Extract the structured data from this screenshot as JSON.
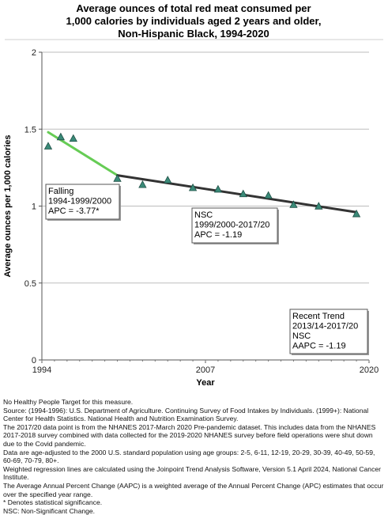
{
  "chart_data": {
    "type": "line",
    "title_lines": [
      "Average ounces of total red meat consumed per",
      "1,000 calories by individuals aged 2 years and older,",
      "Non-Hispanic Black,  1994-2020"
    ],
    "xlabel": "Year",
    "ylabel": "Average ounces per 1,000 calories",
    "xlim": [
      1994,
      2020
    ],
    "ylim": [
      0,
      2
    ],
    "x_ticks": [
      "1994",
      "2007",
      "2020"
    ],
    "x_tick_values": [
      1994,
      2007,
      2020
    ],
    "y_ticks": [
      "0",
      "0.5",
      "1",
      "1.5",
      "2"
    ],
    "y_tick_values": [
      0,
      0.5,
      1,
      1.5,
      2
    ],
    "grid": true,
    "observed": {
      "marker": "triangle",
      "color": "#3a8a78",
      "x": [
        1994.5,
        1995.5,
        1996.5,
        2000,
        2002,
        2004,
        2006,
        2008,
        2010,
        2012,
        2014,
        2016,
        2019
      ],
      "y": [
        1.39,
        1.45,
        1.44,
        1.18,
        1.14,
        1.17,
        1.12,
        1.11,
        1.08,
        1.07,
        1.01,
        1.0,
        0.95
      ]
    },
    "trend_segments": [
      {
        "x": [
          1994.5,
          2000
        ],
        "y": [
          1.48,
          1.2
        ],
        "color": "#66cc55"
      },
      {
        "x": [
          2000,
          2019
        ],
        "y": [
          1.2,
          0.96
        ],
        "color": "#333333"
      }
    ],
    "annotations": [
      {
        "id": "falling",
        "lines": [
          "Falling",
          "1994-1999/2000",
          "APC = -3.77*"
        ]
      },
      {
        "id": "nsc",
        "lines": [
          "NSC",
          "1999/2000-2017/20",
          "APC = -1.19"
        ]
      },
      {
        "id": "recent",
        "lines": [
          "Recent Trend",
          "2013/14-2017/20",
          "NSC",
          "AAPC = -1.19"
        ]
      }
    ]
  },
  "footnotes": [
    "No Healthy People Target for this measure.",
    "Source: (1994-1996): U.S. Department of Agriculture. Continuing Survey of Food Intakes by Individuals. (1999+): National Center for Health Statistics. National Health and Nutrition Examination Survey.",
    "The 2017/20 data point is from the NHANES 2017-March 2020 Pre-pandemic dataset. This includes data from the NHANES 2017-2018 survey combined with data collected for the 2019-2020 NHANES survey before field operations were shut down due to the Covid pandemic.",
    "Data are age-adjusted to the 2000 U.S. standard population using age groups: 2-5, 6-11, 12-19, 20-29, 30-39, 40-49, 50-59, 60-69, 70-79, 80+.",
    "Weighted regression lines are calculated using the Joinpoint Trend Analysis Software, Version 5.1 April 2024, National Cancer Institute.",
    "The Average Annual Percent Change (AAPC) is a weighted average of the Annual Percent Change (APC) estimates that occur over the specified year range.",
    "* Denotes statistical significance.",
    "NSC: Non-Significant Change."
  ]
}
